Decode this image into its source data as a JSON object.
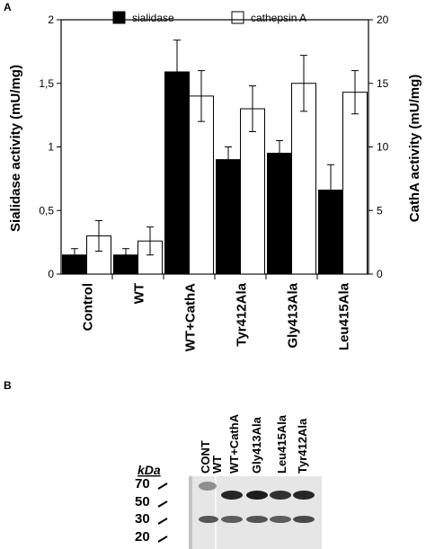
{
  "panel_a_label": "A",
  "panel_b_label": "B",
  "chart_data": {
    "type": "bar",
    "categories": [
      "Control",
      "WT",
      "WT+CathA",
      "Tyr412Ala",
      "Gly413Ala",
      "Leu415Ala"
    ],
    "series": [
      {
        "name": "sialidase",
        "axis": "left",
        "color": "#000000",
        "values": [
          0.15,
          0.15,
          1.59,
          0.9,
          0.95,
          0.66
        ],
        "errors": [
          0.05,
          0.05,
          0.25,
          0.1,
          0.1,
          0.2
        ]
      },
      {
        "name": "cathepsin A",
        "axis": "right",
        "color": "#ffffff",
        "values": [
          3.0,
          2.6,
          14.0,
          13.0,
          15.0,
          14.3
        ],
        "errors": [
          1.2,
          1.1,
          2.0,
          1.8,
          2.2,
          1.7
        ]
      }
    ],
    "ylabel": "Sialidase activity (mU/mg)",
    "ylabel_right": "CathA activity (mU/mg)",
    "ylim": [
      0,
      2
    ],
    "ylim_right": [
      0,
      20
    ],
    "yticks": [
      "0",
      "0,5",
      "1",
      "1,5",
      "2"
    ],
    "yticks_right": [
      "0",
      "5",
      "10",
      "15",
      "20"
    ],
    "legend_position": "top"
  },
  "blot": {
    "lanes": [
      "CONT",
      "WT",
      "WT+CathA",
      "Gly413Ala",
      "Leu415Ala",
      "Tyr412Ala"
    ],
    "unit_label": "kDa",
    "markers": [
      "70",
      "50",
      "30",
      "20"
    ]
  }
}
